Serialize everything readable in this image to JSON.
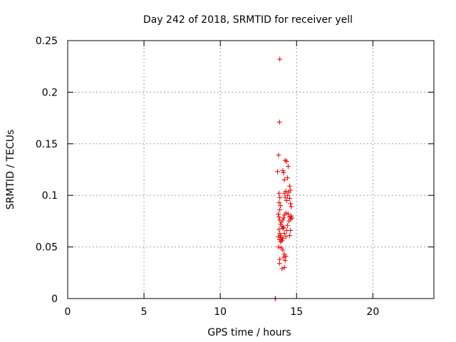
{
  "chart_data": {
    "type": "scatter",
    "title": "Day 242 of 2018, SRMTID for receiver yell",
    "xlabel": "GPS time / hours",
    "ylabel": "SRMTID / TECUs",
    "xlim": [
      0,
      24
    ],
    "ylim": [
      0,
      0.25
    ],
    "x_ticks": [
      "0",
      "5",
      "10",
      "15",
      "20"
    ],
    "x_tick_values": [
      0,
      5,
      10,
      15,
      20
    ],
    "y_ticks": [
      "0",
      "0.05",
      "0.1",
      "0.15",
      "0.2",
      "0.25"
    ],
    "y_tick_values": [
      0,
      0.05,
      0.1,
      0.15,
      0.2,
      0.25
    ],
    "grid": true,
    "grid_style": "dotted",
    "marker": "plus",
    "color": "#e00000",
    "series": [
      {
        "points": [
          [
            13.9,
            0.232
          ],
          [
            13.88,
            0.171
          ],
          [
            13.82,
            0.139
          ],
          [
            13.75,
            0.123
          ],
          [
            14.25,
            0.134
          ],
          [
            14.35,
            0.133
          ],
          [
            14.45,
            0.128
          ],
          [
            14.1,
            0.124
          ],
          [
            14.15,
            0.122
          ],
          [
            14.2,
            0.115
          ],
          [
            14.4,
            0.117
          ],
          [
            14.55,
            0.109
          ],
          [
            14.6,
            0.105
          ],
          [
            14.5,
            0.103
          ],
          [
            14.3,
            0.104
          ],
          [
            14.2,
            0.102
          ],
          [
            14.25,
            0.098
          ],
          [
            14.55,
            0.097
          ],
          [
            14.6,
            0.092
          ],
          [
            14.65,
            0.089
          ],
          [
            14.4,
            0.1
          ],
          [
            14.35,
            0.095
          ],
          [
            13.85,
            0.102
          ],
          [
            13.9,
            0.098
          ],
          [
            13.85,
            0.093
          ],
          [
            13.95,
            0.09
          ],
          [
            13.9,
            0.086
          ],
          [
            14.3,
            0.083
          ],
          [
            14.45,
            0.082
          ],
          [
            14.55,
            0.079
          ],
          [
            14.6,
            0.077
          ],
          [
            14.7,
            0.078
          ],
          [
            14.65,
            0.08
          ],
          [
            14.5,
            0.075
          ],
          [
            14.4,
            0.071
          ],
          [
            14.35,
            0.066
          ],
          [
            14.6,
            0.066
          ],
          [
            14.55,
            0.061
          ],
          [
            14.3,
            0.06
          ],
          [
            14.2,
            0.063
          ],
          [
            14.15,
            0.069
          ],
          [
            13.8,
            0.082
          ],
          [
            13.85,
            0.079
          ],
          [
            13.9,
            0.076
          ],
          [
            13.95,
            0.072
          ],
          [
            14.0,
            0.074
          ],
          [
            14.05,
            0.07
          ],
          [
            14.1,
            0.068
          ],
          [
            14.15,
            0.078
          ],
          [
            14.2,
            0.081
          ],
          [
            14.1,
            0.076
          ],
          [
            13.85,
            0.067
          ],
          [
            13.9,
            0.063
          ],
          [
            13.95,
            0.061
          ],
          [
            14.0,
            0.059
          ],
          [
            13.9,
            0.057
          ],
          [
            13.95,
            0.055
          ],
          [
            14.05,
            0.056
          ],
          [
            14.1,
            0.058
          ],
          [
            13.8,
            0.06
          ],
          [
            13.82,
            0.05
          ],
          [
            14.0,
            0.049
          ],
          [
            14.1,
            0.047
          ],
          [
            14.2,
            0.043
          ],
          [
            14.3,
            0.041
          ],
          [
            14.15,
            0.04
          ],
          [
            14.25,
            0.037
          ],
          [
            13.9,
            0.038
          ],
          [
            13.88,
            0.034
          ],
          [
            14.05,
            0.029
          ],
          [
            14.2,
            0.03
          ],
          [
            13.6,
            0.0
          ],
          [
            13.62,
            0.0
          ]
        ]
      }
    ]
  }
}
